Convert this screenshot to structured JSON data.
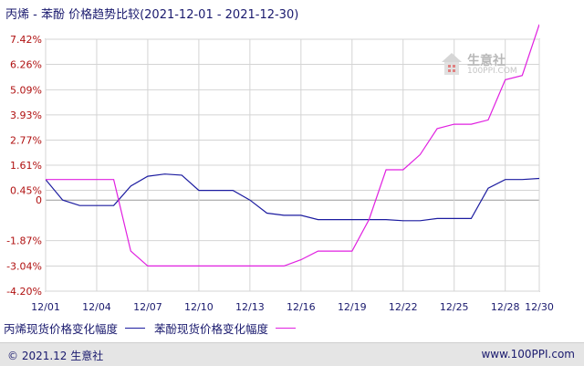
{
  "header": {
    "title": "丙烯 - 苯酚 价格趋势比较(2021-12-01 - 2021-12-30)"
  },
  "watermark": {
    "name": "生意社",
    "url": "100PPI.COM"
  },
  "legend": {
    "items": [
      {
        "label": "丙烯现货价格变化幅度",
        "color": "#1c1ca0"
      },
      {
        "label": "苯酚现货价格变化幅度",
        "color": "#e020e0"
      }
    ]
  },
  "footer": {
    "left": "© 2021.12 生意社",
    "right": "www.100PPI.com"
  },
  "chart_data": {
    "type": "line",
    "title": "丙烯 - 苯酚 价格趋势比较(2021-12-01 - 2021-12-30)",
    "xlabel": "",
    "ylabel": "",
    "y_unit": "%",
    "ylim": [
      -4.2,
      7.42
    ],
    "y_ticks": [
      7.42,
      6.26,
      5.09,
      3.93,
      2.77,
      1.61,
      0.45,
      0,
      -1.87,
      -3.04,
      -4.2
    ],
    "y_tick_labels": [
      "7.42%",
      "6.26%",
      "5.09%",
      "3.93%",
      "2.77%",
      "1.61%",
      "0.45%",
      "0",
      "-1.87%",
      "-3.04%",
      "-4.20%"
    ],
    "x_tick_labels": [
      {
        "day": 1,
        "label": "12/01"
      },
      {
        "day": 4,
        "label": "12/04"
      },
      {
        "day": 7,
        "label": "12/07"
      },
      {
        "day": 10,
        "label": "12/10"
      },
      {
        "day": 13,
        "label": "12/13"
      },
      {
        "day": 16,
        "label": "12/16"
      },
      {
        "day": 19,
        "label": "12/19"
      },
      {
        "day": 22,
        "label": "12/22"
      },
      {
        "day": 25,
        "label": "12/25"
      },
      {
        "day": 28,
        "label": "12/28"
      },
      {
        "day": 30,
        "label": "12/30"
      }
    ],
    "grid": true,
    "legend_position": "bottom",
    "x_days": [
      1,
      2,
      3,
      4,
      5,
      6,
      7,
      8,
      9,
      10,
      11,
      12,
      13,
      14,
      15,
      16,
      17,
      18,
      19,
      20,
      21,
      22,
      23,
      24,
      25,
      26,
      27,
      28,
      29,
      30
    ],
    "series": [
      {
        "name": "丙烯现货价格变化幅度",
        "color": "#1c1ca0",
        "values": [
          0.95,
          0.0,
          -0.25,
          -0.25,
          -0.25,
          0.65,
          1.1,
          1.2,
          1.15,
          0.45,
          0.45,
          0.45,
          0.0,
          -0.6,
          -0.7,
          -0.7,
          -0.9,
          -0.9,
          -0.9,
          -0.9,
          -0.9,
          -0.95,
          -0.95,
          -0.85,
          -0.85,
          -0.85,
          0.55,
          0.95,
          0.95,
          1.0
        ]
      },
      {
        "name": "苯酚现货价格变化幅度",
        "color": "#e020e0",
        "values": [
          0.95,
          0.95,
          0.95,
          0.95,
          0.95,
          -2.35,
          -3.04,
          -3.04,
          -3.04,
          -3.04,
          -3.04,
          -3.04,
          -3.04,
          -3.04,
          -3.04,
          -2.75,
          -2.35,
          -2.35,
          -2.35,
          -0.9,
          1.4,
          1.4,
          2.1,
          3.3,
          3.5,
          3.5,
          3.7,
          5.55,
          5.75,
          8.1
        ]
      }
    ]
  }
}
